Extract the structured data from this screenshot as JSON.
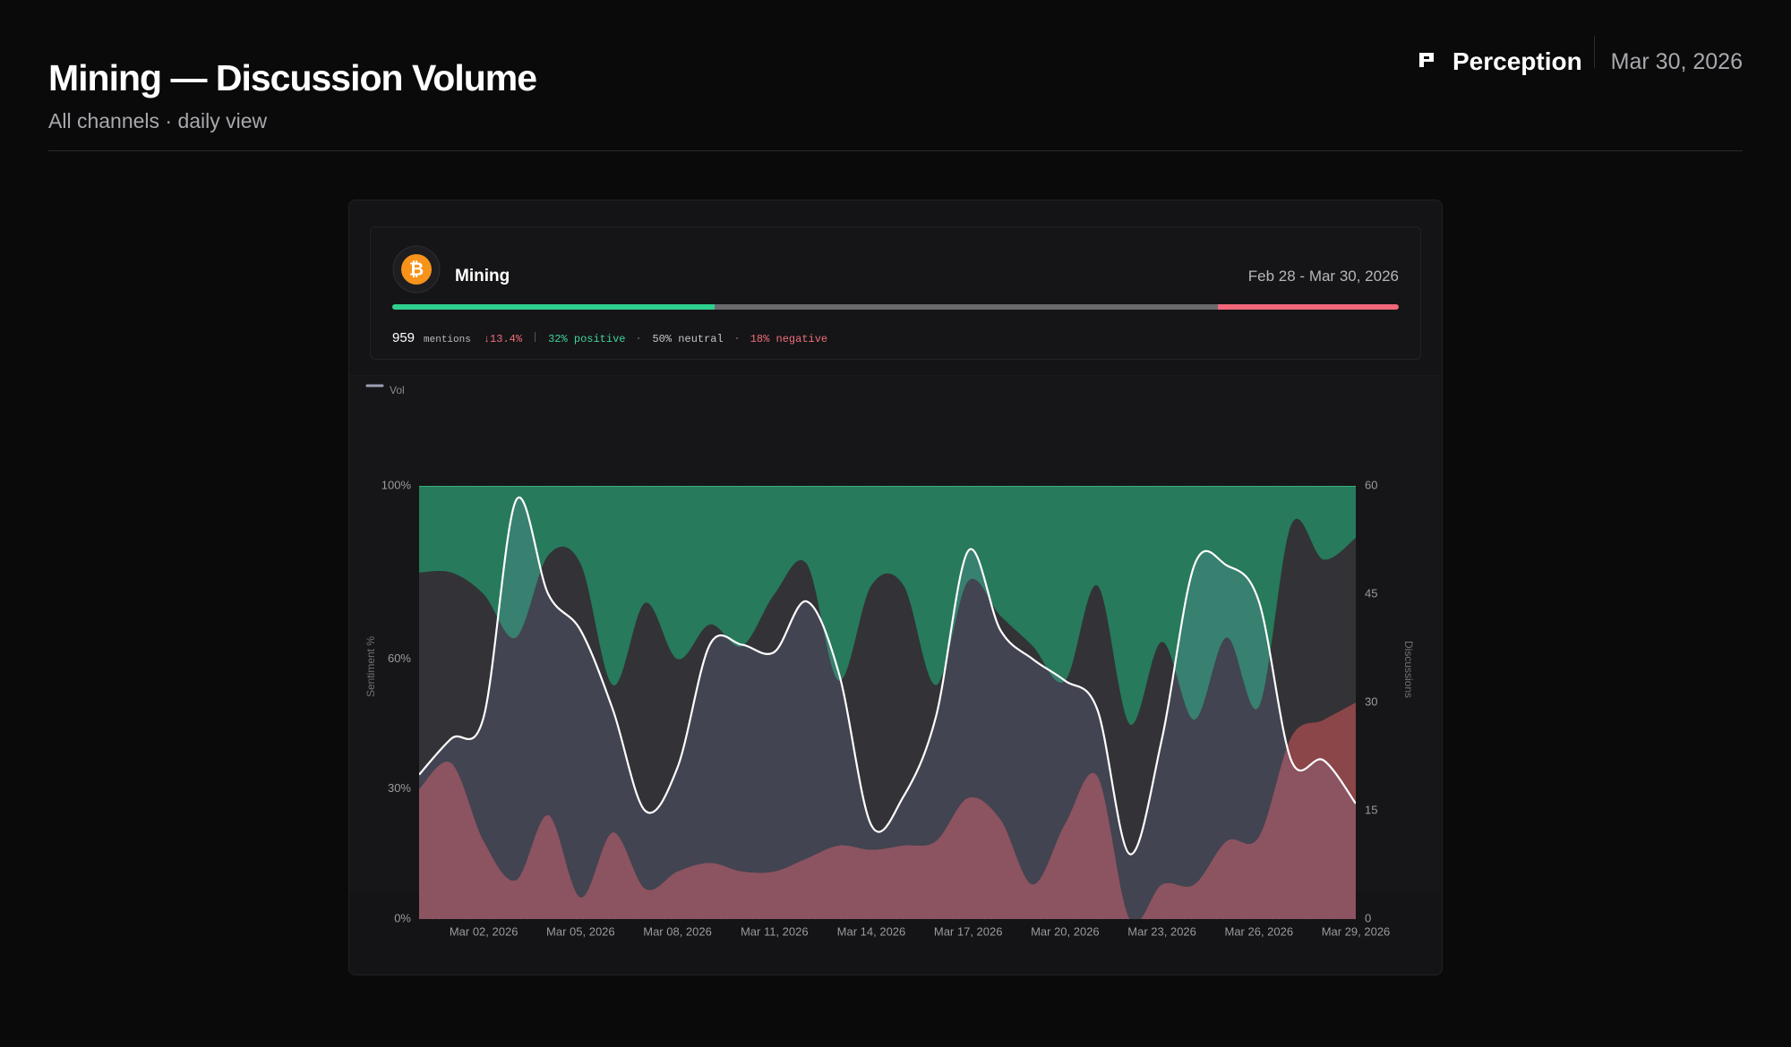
{
  "header": {
    "title": "Mining — Discussion Volume",
    "subtitle": "All channels · daily view",
    "brand": "Perception",
    "date": "Mar 30, 2026"
  },
  "card": {
    "name": "Mining",
    "icon": "₿",
    "date_range": "Feb 28 - Mar 30, 2026",
    "mentions": 959,
    "mentions_label": "mentions",
    "change": "↓13.4%",
    "split": {
      "values": [
        32,
        50,
        18
      ],
      "value_labels": [
        "32% positive",
        "50% neutral",
        "18% negative"
      ],
      "colors": [
        "#2fcf8f",
        "#6a6a6e",
        "#f0677a"
      ]
    }
  },
  "chart_data": {
    "type": "area",
    "stacked": true,
    "categories": [
      null,
      null,
      "Mar 02, 2026",
      null,
      null,
      "Mar 05, 2026",
      null,
      null,
      "Mar 08, 2026",
      null,
      null,
      "Mar 11, 2026",
      null,
      null,
      "Mar 14, 2026",
      null,
      null,
      "Mar 17, 2026",
      null,
      null,
      "Mar 20, 2026",
      null,
      null,
      "Mar 23, 2026",
      null,
      null,
      "Mar 26, 2026",
      null,
      null,
      "Mar 29, 2026"
    ],
    "series": [
      {
        "color": "#8a4649",
        "values": [
          30,
          36,
          18,
          9,
          24,
          5,
          20,
          7,
          11,
          13,
          11,
          11,
          14,
          17,
          16,
          17,
          18,
          28,
          23,
          8,
          22,
          33,
          0,
          8,
          8,
          18,
          19,
          42,
          46,
          50
        ]
      },
      {
        "color": "#333337",
        "values": [
          50,
          44,
          57,
          56,
          60,
          77,
          34,
          66,
          49,
          55,
          52,
          64,
          68,
          38,
          61,
          60,
          36,
          50,
          47,
          55,
          33,
          44,
          45,
          56,
          38,
          47,
          30,
          49,
          37,
          38
        ]
      },
      {
        "color": "#277a5b",
        "values": [
          20,
          20,
          25,
          35,
          16,
          18,
          46,
          27,
          40,
          32,
          37,
          25,
          18,
          45,
          23,
          23,
          46,
          22,
          30,
          37,
          45,
          23,
          55,
          36,
          54,
          35,
          51,
          9,
          17,
          12
        ]
      },
      {
        "name": "Vol",
        "type": "line",
        "axis": "y2",
        "color": "#ffffff",
        "values": [
          20,
          25,
          28,
          58,
          45,
          40,
          29,
          15,
          21,
          38,
          38,
          37,
          44,
          34,
          13,
          17,
          28,
          51,
          40,
          36,
          33,
          29,
          9,
          25,
          49,
          49,
          44,
          22,
          22,
          16
        ]
      }
    ],
    "ylim": [
      0,
      100
    ],
    "yticks": [
      {
        "value": 0,
        "label": "0%"
      },
      {
        "value": 30,
        "label": "30%"
      },
      {
        "value": 60,
        "label": "60%"
      },
      {
        "value": 100,
        "label": "100%"
      }
    ],
    "y2lim": [
      0,
      60
    ],
    "y2ticks": [
      0,
      15,
      30,
      45,
      60
    ],
    "ylabel": "Sentiment %",
    "y2label": "Discussions",
    "grid": true,
    "legend": "top-left"
  }
}
